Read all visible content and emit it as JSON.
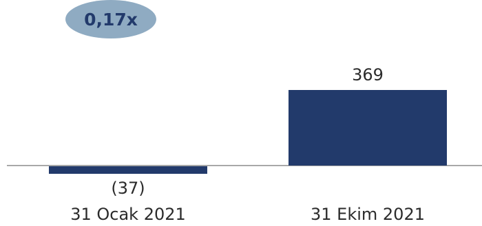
{
  "chart_data": {
    "type": "bar",
    "badge": "0,17x",
    "categories": [
      "31 Ocak 2021",
      "31 Ekim 2021"
    ],
    "values": [
      -37,
      369
    ],
    "value_labels": [
      "(37)",
      "369"
    ],
    "ylim": [
      -100,
      500
    ],
    "grid": false,
    "legend": "none"
  },
  "colors": {
    "bar": "#223a6b",
    "badge_fill": "#8fabc2",
    "badge_text": "#223a6b",
    "axis": "#8c8c8c",
    "text": "#2b2b2b"
  }
}
